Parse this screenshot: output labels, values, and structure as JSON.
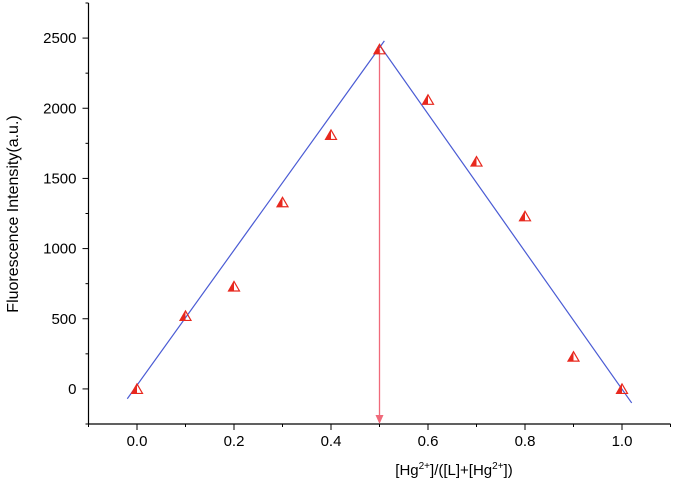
{
  "chart_data": {
    "type": "scatter",
    "x": [
      0.0,
      0.1,
      0.2,
      0.3,
      0.4,
      0.5,
      0.6,
      0.7,
      0.8,
      0.9,
      1.0
    ],
    "series": [
      {
        "color": "#e8281e",
        "values": [
          0,
          520,
          730,
          1330,
          1810,
          2420,
          2060,
          1620,
          1230,
          230,
          0
        ]
      }
    ],
    "fit_lines": [
      {
        "color": "#4a5bd4",
        "x": [
          -0.02,
          0.51
        ],
        "y": [
          -70,
          2480
        ]
      },
      {
        "color": "#4a5bd4",
        "x": [
          0.5,
          1.02
        ],
        "y": [
          2450,
          -100
        ]
      }
    ],
    "arrow": {
      "color": "#f06a7a",
      "x": 0.5,
      "y": [
        2420,
        -250
      ]
    },
    "x_label_parts": [
      "[Hg",
      "2+",
      "]/([L]+[Hg",
      "2+",
      "])"
    ],
    "y_label": "Fluorescence Intensity(a.u.)",
    "xlim": [
      -0.1,
      1.1
    ],
    "ylim": [
      -250,
      2750
    ],
    "xticks": [
      {
        "value": 0,
        "label": "0.0"
      },
      {
        "value": 0.2,
        "label": "0.2"
      },
      {
        "value": 0.4,
        "label": "0.4"
      },
      {
        "value": 0.6,
        "label": "0.6"
      },
      {
        "value": 0.8,
        "label": "0.8"
      },
      {
        "value": 1,
        "label": "1.0"
      }
    ],
    "xminorticks": [
      -0.1,
      0.1,
      0.3,
      0.5,
      0.7,
      0.9,
      1.1
    ],
    "yticks": [
      0,
      500,
      1000,
      1500,
      2000,
      2500
    ],
    "yminorticks": [
      -250,
      250,
      750,
      1250,
      1750,
      2250,
      2750
    ]
  }
}
